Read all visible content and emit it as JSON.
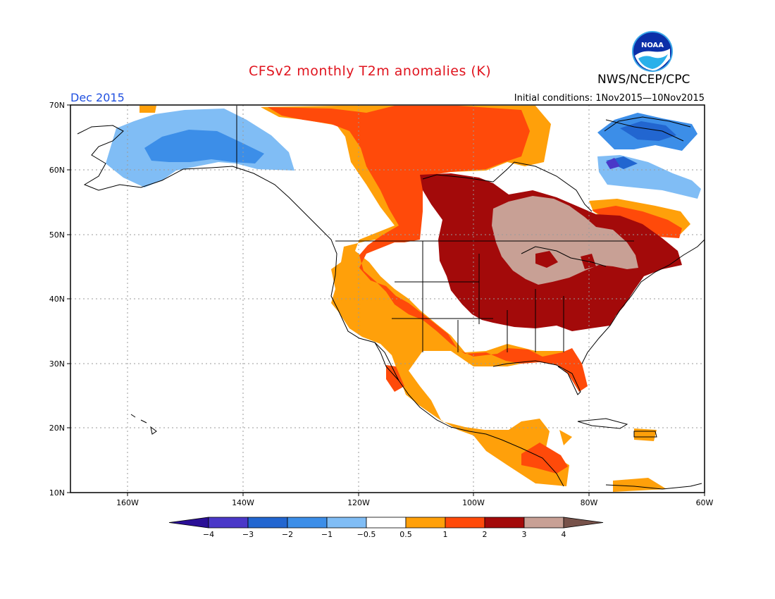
{
  "title": "CFSv2 monthly T2m anomalies (K)",
  "agency": "NWS/NCEP/CPC",
  "logo_text": "NOAA",
  "month": "Dec 2015",
  "initial_conditions": "Initial conditions: 1Nov2015—10Nov2015",
  "lat_labels": [
    "70N",
    "60N",
    "50N",
    "40N",
    "30N",
    "20N",
    "10N"
  ],
  "lon_labels": [
    "160W",
    "140W",
    "120W",
    "100W",
    "80W",
    "60W"
  ],
  "colorbar": {
    "labels": [
      "−4",
      "−3",
      "−2",
      "−1",
      "−0.5",
      "0.5",
      "1",
      "2",
      "3",
      "4"
    ],
    "colors": [
      "#2a0f96",
      "#4a38c8",
      "#2266d0",
      "#3c8ee8",
      "#80bdf5",
      "#ffffff",
      "#ffa00a",
      "#ff4a0a",
      "#a30a0a",
      "#c8a095",
      "#77524a"
    ]
  },
  "colors": {
    "title": "#e0141e",
    "month": "#2050e0",
    "ocean": "#ffffff"
  }
}
